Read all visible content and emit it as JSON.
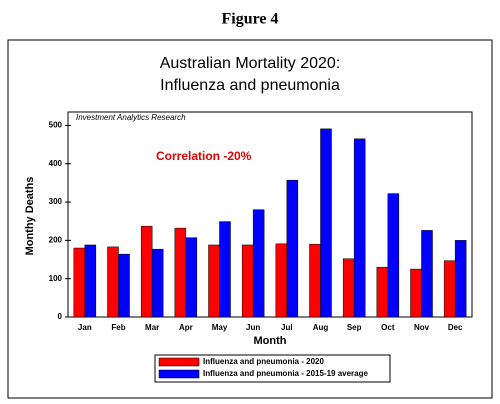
{
  "heading": "Figure 4",
  "chart_data": {
    "type": "bar",
    "title": [
      "Australian Mortality 2020:",
      "Influenza and  pneumonia"
    ],
    "annotations": [
      "Investment Analytics Research",
      "Correlation -20%"
    ],
    "xlabel": "Month",
    "ylabel": "Monthy Deaths",
    "categories": [
      "Jan",
      "Feb",
      "Mar",
      "Apr",
      "May",
      "Jun",
      "Jul",
      "Aug",
      "Sep",
      "Oct",
      "Nov",
      "Dec"
    ],
    "series": [
      {
        "name": "Influenza and pneumonia - 2020",
        "color": "#ff0000",
        "values": [
          180,
          183,
          237,
          232,
          188,
          188,
          191,
          190,
          152,
          130,
          125,
          147
        ]
      },
      {
        "name": "Influenza and pneumonia - 2015-19 average",
        "color": "#0000ff",
        "values": [
          188,
          164,
          177,
          207,
          249,
          280,
          357,
          491,
          465,
          322,
          226,
          200
        ]
      }
    ],
    "ylim": [
      0,
      535
    ],
    "yticks": [
      0,
      100,
      200,
      300,
      400,
      500
    ],
    "grid": false,
    "legend": "bottom"
  }
}
